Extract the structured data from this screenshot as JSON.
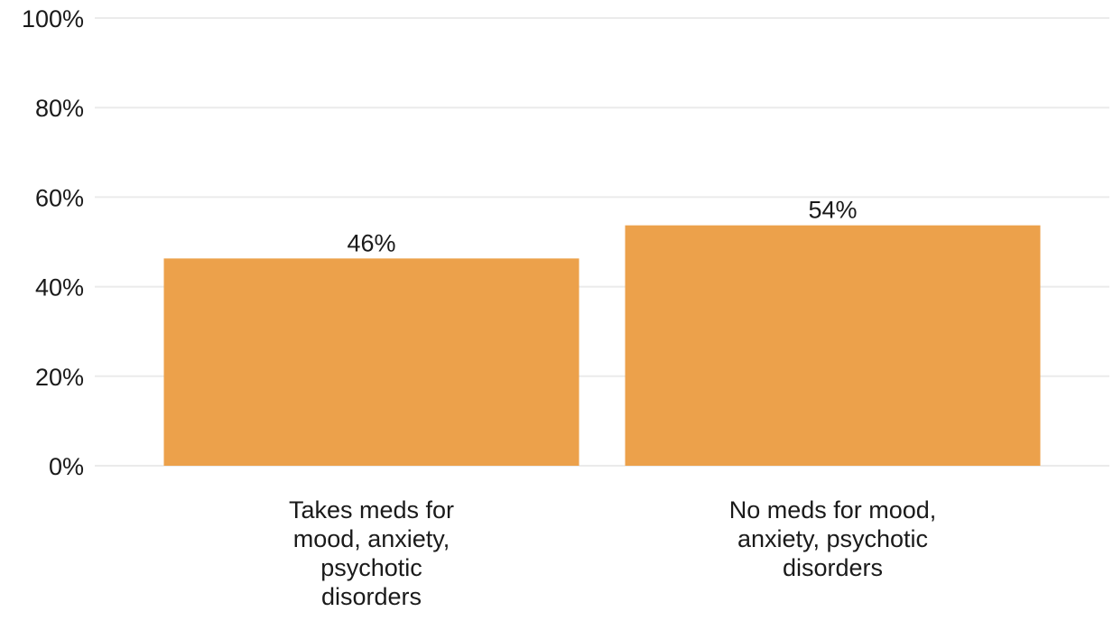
{
  "chart_data": {
    "type": "bar",
    "title": "",
    "xlabel": "",
    "ylabel": "",
    "categories": [
      [
        "Takes meds for",
        "mood, anxiety,",
        "psychotic",
        "disorders"
      ],
      [
        "No meds for mood,",
        "anxiety, psychotic",
        "disorders"
      ]
    ],
    "values": [
      46.3,
      53.7
    ],
    "data_labels": [
      "46%",
      "54%"
    ],
    "ylim": [
      0,
      100
    ],
    "yticks": [
      0,
      20,
      40,
      60,
      80,
      100
    ],
    "ytick_labels": [
      "0%",
      "20%",
      "40%",
      "60%",
      "80%",
      "100%"
    ],
    "bar_color": "#eca14b",
    "grid": true,
    "legend": "none"
  }
}
